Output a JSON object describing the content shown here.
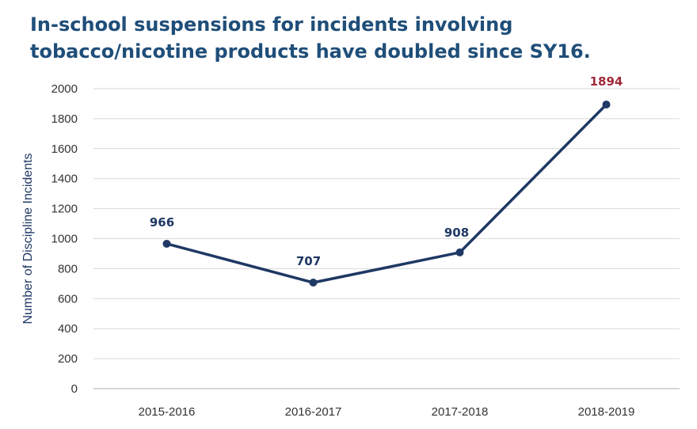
{
  "colors": {
    "title": "#1f4e79",
    "series_line": "#1f3864",
    "highlight_label": "#9e2a3a",
    "grid": "#d9d9d9"
  },
  "chart_data": {
    "type": "line",
    "title_lines": [
      "In-school suspensions for incidents involving",
      "tobacco/nicotine products have doubled since SY16."
    ],
    "xlabel": "",
    "ylabel": "Number of Discipline Incidents",
    "categories": [
      "2015-2016",
      "2016-2017",
      "2017-2018",
      "2018-2019"
    ],
    "series": [
      {
        "values": [
          966,
          707,
          908,
          1894
        ]
      }
    ],
    "data_labels": [
      "966",
      "707",
      "908",
      "1894"
    ],
    "highlight_index": 3,
    "ylim": [
      0,
      2000
    ],
    "yticks": [
      0,
      200,
      400,
      600,
      800,
      1000,
      1200,
      1400,
      1600,
      1800,
      2000
    ],
    "grid": true,
    "legend": "none"
  }
}
